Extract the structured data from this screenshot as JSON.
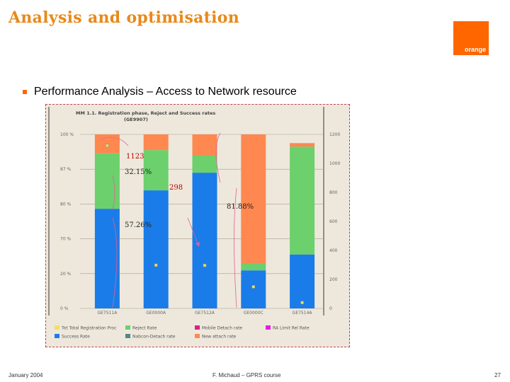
{
  "slide": {
    "title": "Analysis and optimisation",
    "logo_text": "orange",
    "bullet": "Performance Analysis – Access to Network resource",
    "footer_left": "January 2004",
    "footer_center": "F. Michaud – GPRS course",
    "footer_right": "27"
  },
  "colors": {
    "accent": "#ff6600",
    "title": "#e8891a",
    "blue": "#1a7ce8",
    "green": "#6cd06c",
    "orange": "#ff8850",
    "annotation_red": "#c00000"
  },
  "chart_data": {
    "type": "bar",
    "title": "MM 1.1. Registration phase, Reject and Success rates",
    "subtitle": "(GE9907)",
    "categories": [
      "GE7511A",
      "GE0000A",
      "GE7512A",
      "GE0000C",
      "GE7514A"
    ],
    "series": [
      {
        "name": "Success Rate",
        "values": [
          57.26,
          67.85,
          78.0,
          21.87,
          31.0
        ],
        "color": "#1a7ce8"
      },
      {
        "name": "Reject Rate",
        "values": [
          31.87,
          23.15,
          10.0,
          3.93,
          62.0
        ],
        "color": "#6cd06c"
      },
      {
        "name": "Nabcon-Detach rate",
        "values": [
          0,
          0,
          0,
          0,
          0
        ],
        "color": "#4a8a8a"
      },
      {
        "name": "Mobile Detach rate",
        "values": [
          0,
          0,
          0,
          0,
          0
        ],
        "color": "#e0208a"
      },
      {
        "name": "New attach rate",
        "values": [
          10.87,
          9.0,
          12.0,
          74.2,
          2.0
        ],
        "color": "#ff8850"
      },
      {
        "name": "RA Limit Rel Rate",
        "values": [
          0,
          0,
          0,
          0,
          0
        ],
        "color": "#e020e0"
      }
    ],
    "line_series": {
      "name": "Tot Total Registration Proc",
      "values": [
        1123,
        298,
        297,
        149,
        40
      ],
      "axis": "right"
    },
    "left_ticks": [
      "100 %",
      "87 %",
      "80 %",
      "70 %",
      "20 %",
      "0 %"
    ],
    "right_ticks": [
      "1200",
      "1000",
      "800",
      "600",
      "400",
      "200",
      "0"
    ],
    "ylim": [
      0,
      100
    ],
    "y2lim": [
      0,
      1200
    ],
    "annotations": [
      "1123",
      "32.15%",
      "298",
      "81.88%",
      "57.26%"
    ],
    "legend": [
      "Tot Total Registration Proc",
      "Reject Rate",
      "Mobile Detach rate",
      "RA Limit Rel Rate",
      "Success Rate",
      "Nabcon-Detach rate",
      "New attach rate"
    ]
  }
}
